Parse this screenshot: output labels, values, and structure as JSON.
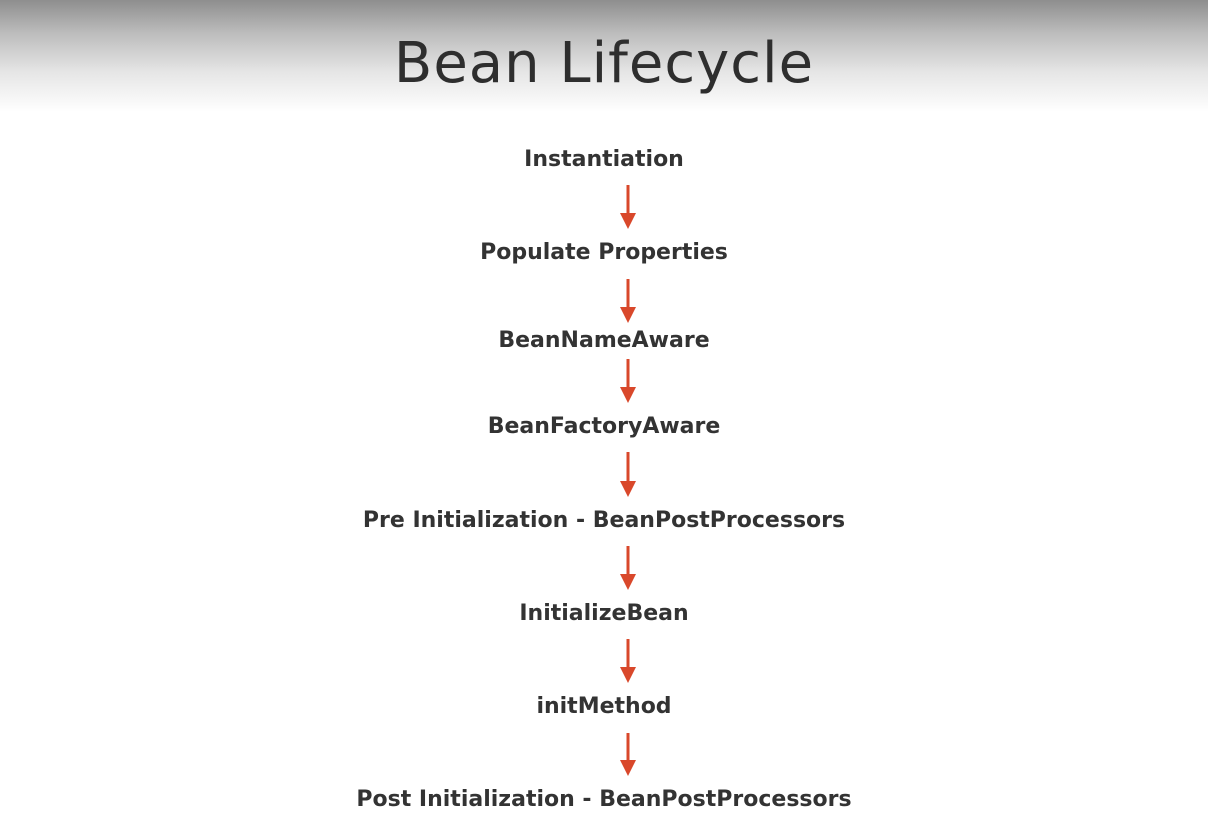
{
  "title": "Bean Lifecycle",
  "steps": [
    "Instantiation",
    "Populate Properties",
    "BeanNameAware",
    "BeanFactoryAware",
    "Pre Initialization - BeanPostProcessors",
    "InitializeBean",
    "initMethod",
    "Post Initialization - BeanPostProcessors"
  ],
  "colors": {
    "arrow": "#d9482b",
    "text": "#333333",
    "title": "#2e2e2e"
  }
}
